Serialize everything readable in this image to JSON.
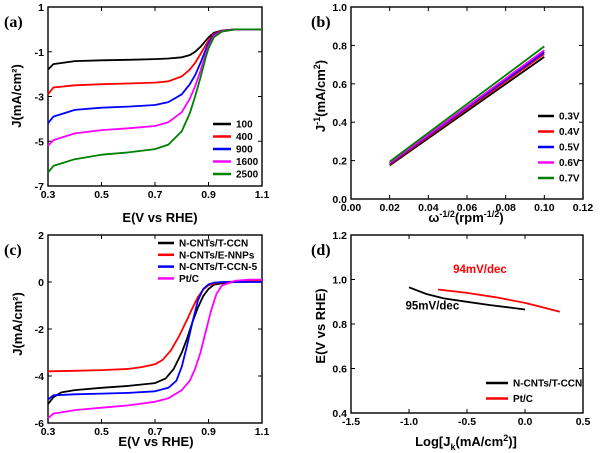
{
  "chart_data": [
    {
      "panel": "(a)",
      "type": "line",
      "xlabel": "E(V vs RHE)",
      "ylabel": "J(mA/cm²)",
      "xlim": [
        0.3,
        1.1
      ],
      "ylim": [
        -7,
        1
      ],
      "xticks": [
        0.3,
        0.5,
        0.7,
        0.9,
        1.1
      ],
      "yticks": [
        1,
        -1,
        -3,
        -5,
        -7
      ],
      "legend_position": "bottom-right",
      "series": [
        {
          "name": "100",
          "color": "#000000",
          "limit": -1.3,
          "x": [
            0.3,
            0.32,
            0.4,
            0.5,
            0.6,
            0.7,
            0.75,
            0.8,
            0.83,
            0.85,
            0.87,
            0.89,
            0.9,
            0.92,
            0.95,
            1.0,
            1.1
          ],
          "y": [
            -1.8,
            -1.55,
            -1.42,
            -1.38,
            -1.36,
            -1.33,
            -1.3,
            -1.25,
            -1.15,
            -1.0,
            -0.78,
            -0.5,
            -0.36,
            -0.15,
            -0.05,
            0.0,
            0.0
          ]
        },
        {
          "name": "400",
          "color": "#ff0000",
          "limit": -2.4,
          "x": [
            0.3,
            0.32,
            0.4,
            0.5,
            0.6,
            0.7,
            0.75,
            0.8,
            0.83,
            0.85,
            0.87,
            0.89,
            0.9,
            0.92,
            0.95,
            1.0,
            1.1
          ],
          "y": [
            -2.9,
            -2.6,
            -2.5,
            -2.45,
            -2.42,
            -2.38,
            -2.32,
            -2.1,
            -1.8,
            -1.5,
            -1.1,
            -0.7,
            -0.5,
            -0.2,
            -0.06,
            0.0,
            0.0
          ]
        },
        {
          "name": "900",
          "color": "#0000ff",
          "limit": -3.45,
          "x": [
            0.3,
            0.32,
            0.4,
            0.5,
            0.6,
            0.7,
            0.75,
            0.8,
            0.83,
            0.85,
            0.87,
            0.89,
            0.9,
            0.92,
            0.95,
            1.0,
            1.1
          ],
          "y": [
            -4.2,
            -3.9,
            -3.6,
            -3.5,
            -3.45,
            -3.38,
            -3.25,
            -2.9,
            -2.45,
            -2.05,
            -1.5,
            -0.9,
            -0.62,
            -0.25,
            -0.07,
            0.0,
            0.0
          ]
        },
        {
          "name": "1600",
          "color": "#ff00ff",
          "limit": -4.5,
          "x": [
            0.3,
            0.32,
            0.4,
            0.5,
            0.6,
            0.7,
            0.75,
            0.8,
            0.83,
            0.85,
            0.87,
            0.89,
            0.9,
            0.92,
            0.95,
            1.0,
            1.1
          ],
          "y": [
            -5.2,
            -4.95,
            -4.65,
            -4.5,
            -4.42,
            -4.32,
            -4.15,
            -3.7,
            -3.1,
            -2.55,
            -1.85,
            -1.1,
            -0.75,
            -0.3,
            -0.08,
            0.0,
            0.0
          ]
        },
        {
          "name": "2500",
          "color": "#008000",
          "limit": -5.6,
          "x": [
            0.3,
            0.32,
            0.4,
            0.5,
            0.6,
            0.7,
            0.75,
            0.8,
            0.83,
            0.85,
            0.87,
            0.89,
            0.9,
            0.92,
            0.95,
            1.0,
            1.1
          ],
          "y": [
            -6.4,
            -6.1,
            -5.8,
            -5.6,
            -5.5,
            -5.35,
            -5.15,
            -4.55,
            -3.75,
            -3.0,
            -2.15,
            -1.25,
            -0.85,
            -0.35,
            -0.1,
            0.0,
            0.0
          ]
        }
      ]
    },
    {
      "panel": "(b)",
      "type": "line",
      "xlabel": "ω⁻¹ᐟ²(rpm⁻¹ᐟ²)",
      "ylabel": "J⁻¹(mA/cm²)",
      "xlim": [
        0.0,
        0.12
      ],
      "ylim": [
        0.0,
        1.0
      ],
      "xticks": [
        0.0,
        0.02,
        0.04,
        0.06,
        0.08,
        0.1,
        0.12
      ],
      "yticks": [
        0.0,
        0.2,
        0.4,
        0.6,
        0.8,
        1.0
      ],
      "legend_position": "bottom-right",
      "series": [
        {
          "name": "0.3V",
          "color": "#000000",
          "x": [
            0.02,
            0.1
          ],
          "y": [
            0.175,
            0.74
          ]
        },
        {
          "name": "0.4V",
          "color": "#ff0000",
          "x": [
            0.02,
            0.1
          ],
          "y": [
            0.18,
            0.755
          ]
        },
        {
          "name": "0.5V",
          "color": "#0000ff",
          "x": [
            0.02,
            0.1
          ],
          "y": [
            0.185,
            0.765
          ]
        },
        {
          "name": "0.6V",
          "color": "#ff00ff",
          "x": [
            0.02,
            0.1
          ],
          "y": [
            0.188,
            0.775
          ]
        },
        {
          "name": "0.7V",
          "color": "#008000",
          "x": [
            0.02,
            0.1
          ],
          "y": [
            0.195,
            0.795
          ]
        }
      ]
    },
    {
      "panel": "(c)",
      "type": "line",
      "xlabel": "E(V vs RHE)",
      "ylabel": "J(mA/cm²)",
      "xlim": [
        0.3,
        1.1
      ],
      "ylim": [
        -6,
        2
      ],
      "xticks": [
        0.3,
        0.5,
        0.7,
        0.9,
        1.1
      ],
      "yticks": [
        2,
        0,
        -2,
        -4,
        -6
      ],
      "legend_position": "top-left",
      "series": [
        {
          "name": "N-CNTs/T-CCN",
          "color": "#000000",
          "x": [
            0.3,
            0.32,
            0.35,
            0.4,
            0.5,
            0.6,
            0.7,
            0.74,
            0.77,
            0.8,
            0.82,
            0.84,
            0.86,
            0.88,
            0.9,
            0.92,
            0.95,
            1.0,
            1.1
          ],
          "y": [
            -5.2,
            -4.9,
            -4.7,
            -4.6,
            -4.5,
            -4.42,
            -4.3,
            -4.1,
            -3.7,
            -3.0,
            -2.4,
            -1.7,
            -1.1,
            -0.6,
            -0.3,
            -0.12,
            -0.05,
            0.0,
            0.02
          ]
        },
        {
          "name": "N-CNTs/E-NNPs",
          "color": "#ff0000",
          "x": [
            0.3,
            0.4,
            0.5,
            0.6,
            0.65,
            0.7,
            0.73,
            0.76,
            0.79,
            0.82,
            0.84,
            0.86,
            0.88,
            0.9,
            0.93,
            0.96,
            1.0,
            1.1
          ],
          "y": [
            -3.8,
            -3.78,
            -3.75,
            -3.7,
            -3.62,
            -3.5,
            -3.3,
            -2.9,
            -2.3,
            -1.6,
            -1.1,
            -0.65,
            -0.32,
            -0.14,
            -0.04,
            0.0,
            0.02,
            0.05
          ]
        },
        {
          "name": "N-CNTs/T-CCN-5",
          "color": "#0000ff",
          "x": [
            0.3,
            0.32,
            0.4,
            0.5,
            0.6,
            0.7,
            0.75,
            0.78,
            0.8,
            0.82,
            0.84,
            0.86,
            0.88,
            0.9,
            0.92,
            0.95,
            1.0,
            1.1
          ],
          "y": [
            -5.0,
            -4.82,
            -4.78,
            -4.75,
            -4.72,
            -4.65,
            -4.5,
            -4.2,
            -3.6,
            -2.7,
            -1.7,
            -0.8,
            -0.3,
            -0.1,
            -0.03,
            0.0,
            0.0,
            0.0
          ]
        },
        {
          "name": "Pt/C",
          "color": "#ff00ff",
          "x": [
            0.3,
            0.32,
            0.4,
            0.5,
            0.6,
            0.7,
            0.75,
            0.8,
            0.83,
            0.85,
            0.87,
            0.89,
            0.91,
            0.93,
            0.95,
            1.0,
            1.05,
            1.1
          ],
          "y": [
            -5.8,
            -5.6,
            -5.45,
            -5.35,
            -5.25,
            -5.1,
            -4.95,
            -4.6,
            -4.2,
            -3.7,
            -3.0,
            -2.1,
            -1.2,
            -0.5,
            -0.15,
            0.05,
            0.1,
            0.1
          ]
        }
      ]
    },
    {
      "panel": "(d)",
      "type": "line",
      "xlabel": "Log[Jₖ(mA/cm²)]",
      "ylabel": "E(V vs RHE)",
      "xlim": [
        -1.5,
        0.5
      ],
      "ylim": [
        0.4,
        1.2
      ],
      "xticks": [
        -1.5,
        -1.0,
        -0.5,
        0.0,
        0.5
      ],
      "yticks": [
        0.4,
        0.6,
        0.8,
        1.0,
        1.2
      ],
      "legend_position": "bottom-right",
      "annotations": [
        {
          "text": "94mV/dec",
          "color": "#ff0000",
          "at_data": [
            -0.62,
            1.03
          ]
        },
        {
          "text": "95mV/dec",
          "color": "#000000",
          "at_data": [
            -1.03,
            0.865
          ]
        }
      ],
      "series": [
        {
          "name": "N-CNTs/T-CCN",
          "color": "#000000",
          "x": [
            -1.0,
            -0.85,
            -0.7,
            -0.5,
            -0.3,
            -0.1,
            0.0
          ],
          "y": [
            0.965,
            0.935,
            0.915,
            0.9,
            0.885,
            0.872,
            0.865
          ]
        },
        {
          "name": "Pt/C",
          "color": "#ff0000",
          "x": [
            -0.75,
            -0.5,
            -0.25,
            0.0,
            0.15,
            0.3
          ],
          "y": [
            0.955,
            0.94,
            0.92,
            0.895,
            0.875,
            0.855
          ]
        }
      ]
    }
  ]
}
